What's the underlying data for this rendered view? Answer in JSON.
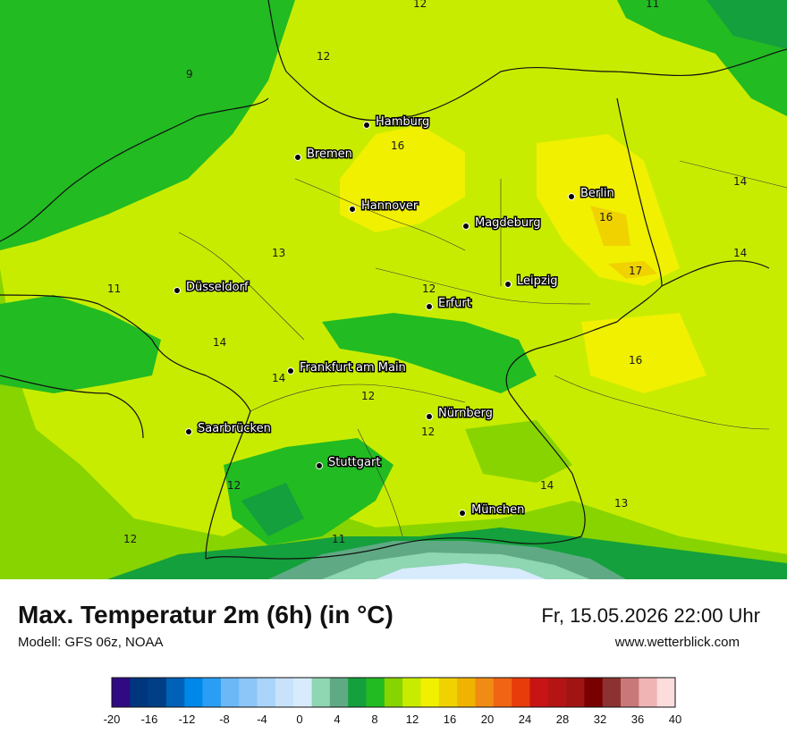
{
  "header": {
    "title": "Max. Temperatur 2m (6h) (in °C)",
    "model": "Modell: GFS 06z, NOAA",
    "datetime": "Fr, 15.05.2026 22:00 Uhr",
    "website": "www.wetterblick.com"
  },
  "cities": [
    {
      "name": "Hamburg"
    },
    {
      "name": "Bremen"
    },
    {
      "name": "Hannover"
    },
    {
      "name": "Berlin"
    },
    {
      "name": "Magdeburg"
    },
    {
      "name": "Leipzig"
    },
    {
      "name": "Erfurt"
    },
    {
      "name": "Düsseldorf"
    },
    {
      "name": "Frankfurt am Main"
    },
    {
      "name": "Nürnberg"
    },
    {
      "name": "Saarbrücken"
    },
    {
      "name": "Stuttgart"
    },
    {
      "name": "München"
    }
  ],
  "isotherm_labels": [
    "12",
    "11",
    "9",
    "12",
    "16",
    "14",
    "16",
    "13",
    "14",
    "17",
    "11",
    "12",
    "14",
    "16",
    "14",
    "12",
    "12",
    "12",
    "14",
    "13",
    "12",
    "11"
  ],
  "color_scale": {
    "unit": "°C",
    "tick_labels": [
      "-20",
      "-16",
      "-12",
      "-8",
      "-4",
      "0",
      "4",
      "8",
      "12",
      "16",
      "20",
      "24",
      "28",
      "32",
      "36",
      "40"
    ],
    "colors": [
      "#300a82",
      "#00367d",
      "#003f86",
      "#0061b8",
      "#0088e8",
      "#2a9ef5",
      "#6cb8f7",
      "#8cc6f8",
      "#aad4fa",
      "#c8e2fb",
      "#d8ebfc",
      "#8fd6b2",
      "#5faa84",
      "#14a03c",
      "#22bb22",
      "#88d400",
      "#c8ec00",
      "#f0f000",
      "#f0d200",
      "#f0b400",
      "#f08c14",
      "#f06414",
      "#e83c0a",
      "#c81414",
      "#b41414",
      "#a01414",
      "#780000",
      "#8c3232",
      "#c87878",
      "#f0b4b4",
      "#fcdcdc"
    ]
  }
}
